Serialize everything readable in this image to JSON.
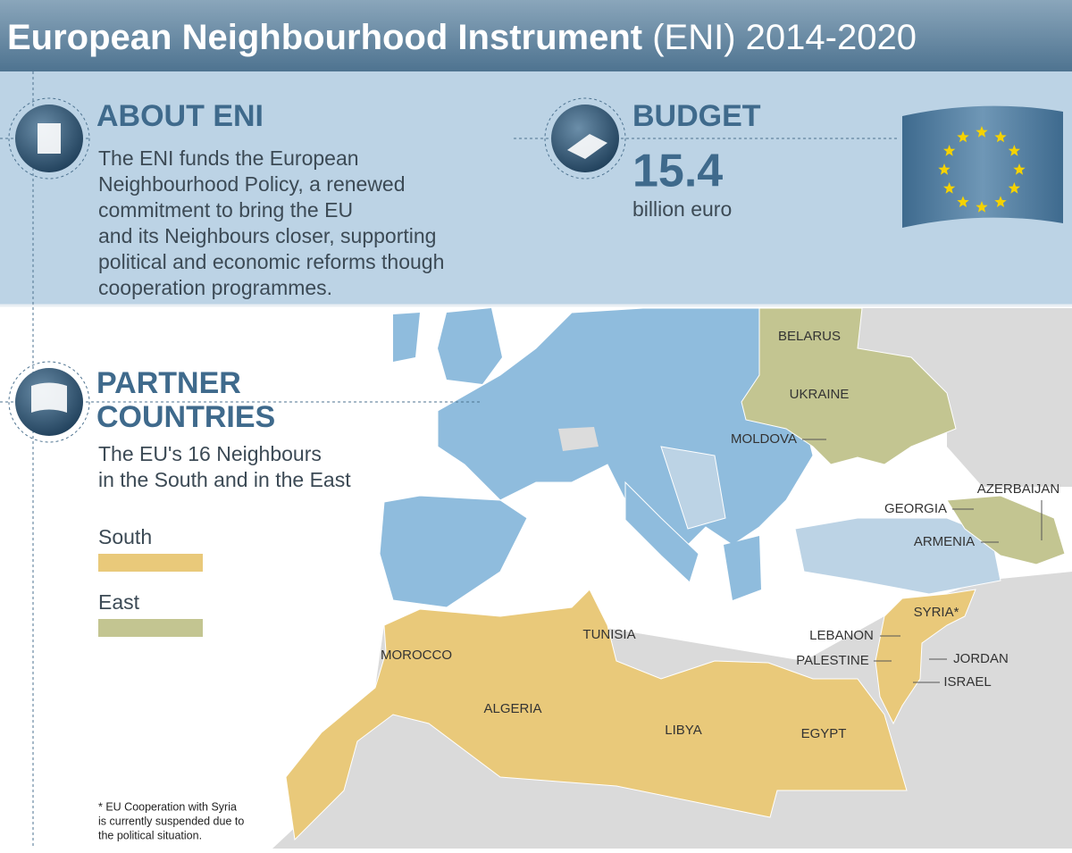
{
  "header": {
    "title_bold": "European Neighbourhood Instrument",
    "title_rest": "(ENI) 2014-2020"
  },
  "about": {
    "heading": "ABOUT ENI",
    "lines": [
      "The ENI funds the European",
      "Neighbourhood Policy, a renewed",
      "commitment to bring the EU",
      "and its Neighbours closer, supporting",
      "political and economic reforms though",
      "cooperation programmes."
    ]
  },
  "budget": {
    "heading": "BUDGET",
    "amount": 15.4,
    "unit": "billion euro"
  },
  "partners": {
    "heading_lines": [
      "PARTNER",
      "COUNTRIES"
    ],
    "description_lines": [
      "The EU's 16 Neighbours",
      "in the South and in the East"
    ]
  },
  "legend": [
    {
      "label": "South",
      "color": "#e9c97a"
    },
    {
      "label": "East",
      "color": "#c3c591"
    }
  ],
  "countries": [
    {
      "label": "BELARUS"
    },
    {
      "label": "UKRAINE"
    },
    {
      "label": "MOLDOVA"
    },
    {
      "label": "GEORGIA"
    },
    {
      "label": "AZERBAIJAN"
    },
    {
      "label": "ARMENIA"
    },
    {
      "label": "SYRIA*"
    },
    {
      "label": "LEBANON"
    },
    {
      "label": "PALESTINE"
    },
    {
      "label": "JORDAN"
    },
    {
      "label": "ISRAEL"
    },
    {
      "label": "TUNISIA"
    },
    {
      "label": "MOROCCO"
    },
    {
      "label": "ALGERIA"
    },
    {
      "label": "LIBYA"
    },
    {
      "label": "EGYPT"
    }
  ],
  "footnote": [
    "* EU Cooperation with Syria",
    "is currently suspended due to",
    "the political situation."
  ]
}
